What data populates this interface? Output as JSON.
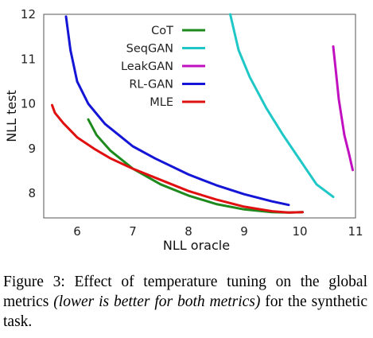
{
  "chart_data": {
    "type": "line",
    "xlabel": "NLL oracle",
    "ylabel": "NLL test",
    "xlim": [
      5.4,
      11.0
    ],
    "ylim": [
      7.45,
      12.0
    ],
    "xticks": [
      6,
      7,
      8,
      9,
      10,
      11
    ],
    "yticks": [
      8,
      9,
      10,
      11,
      12
    ],
    "grid": false,
    "legend_position": "top-center",
    "series": [
      {
        "name": "CoT",
        "color": "#1e8a1e",
        "x": [
          6.2,
          6.35,
          6.6,
          7.0,
          7.5,
          8.0,
          8.5,
          9.0,
          9.5,
          9.8,
          10.05
        ],
        "y": [
          9.65,
          9.3,
          8.95,
          8.55,
          8.2,
          7.95,
          7.76,
          7.64,
          7.58,
          7.57,
          7.58
        ]
      },
      {
        "name": "SeqGAN",
        "color": "#1fc7c7",
        "x": [
          8.75,
          8.9,
          9.1,
          9.4,
          9.7,
          10.0,
          10.3,
          10.6
        ],
        "y": [
          12.0,
          11.2,
          10.6,
          9.9,
          9.3,
          8.75,
          8.2,
          7.92
        ]
      },
      {
        "name": "LeakGAN",
        "color": "#c010c0",
        "x": [
          10.6,
          10.65,
          10.7,
          10.75,
          10.8,
          10.88,
          10.95
        ],
        "y": [
          11.28,
          10.7,
          10.1,
          9.7,
          9.3,
          8.9,
          8.52
        ]
      },
      {
        "name": "RL-GAN",
        "color": "#1515d6",
        "x": [
          5.8,
          5.88,
          6.0,
          6.2,
          6.5,
          6.8,
          7.0,
          7.4,
          8.0,
          8.5,
          9.0,
          9.5,
          9.8
        ],
        "y": [
          11.95,
          11.2,
          10.5,
          10.0,
          9.55,
          9.25,
          9.05,
          8.78,
          8.42,
          8.18,
          7.98,
          7.82,
          7.74
        ]
      },
      {
        "name": "MLE",
        "color": "#e01010",
        "x": [
          5.55,
          5.6,
          5.75,
          6.0,
          6.3,
          6.6,
          7.0,
          7.5,
          8.0,
          8.5,
          9.0,
          9.5,
          9.8,
          10.05
        ],
        "y": [
          9.97,
          9.8,
          9.57,
          9.25,
          9.0,
          8.78,
          8.55,
          8.3,
          8.05,
          7.86,
          7.7,
          7.6,
          7.57,
          7.58
        ]
      }
    ]
  },
  "caption": {
    "label": "Figure 3:",
    "text_before": "Effect of temperature tuning on the global metrics ",
    "text_italic": "(lower is better for both metrics)",
    "text_after": " for the synthetic task."
  }
}
